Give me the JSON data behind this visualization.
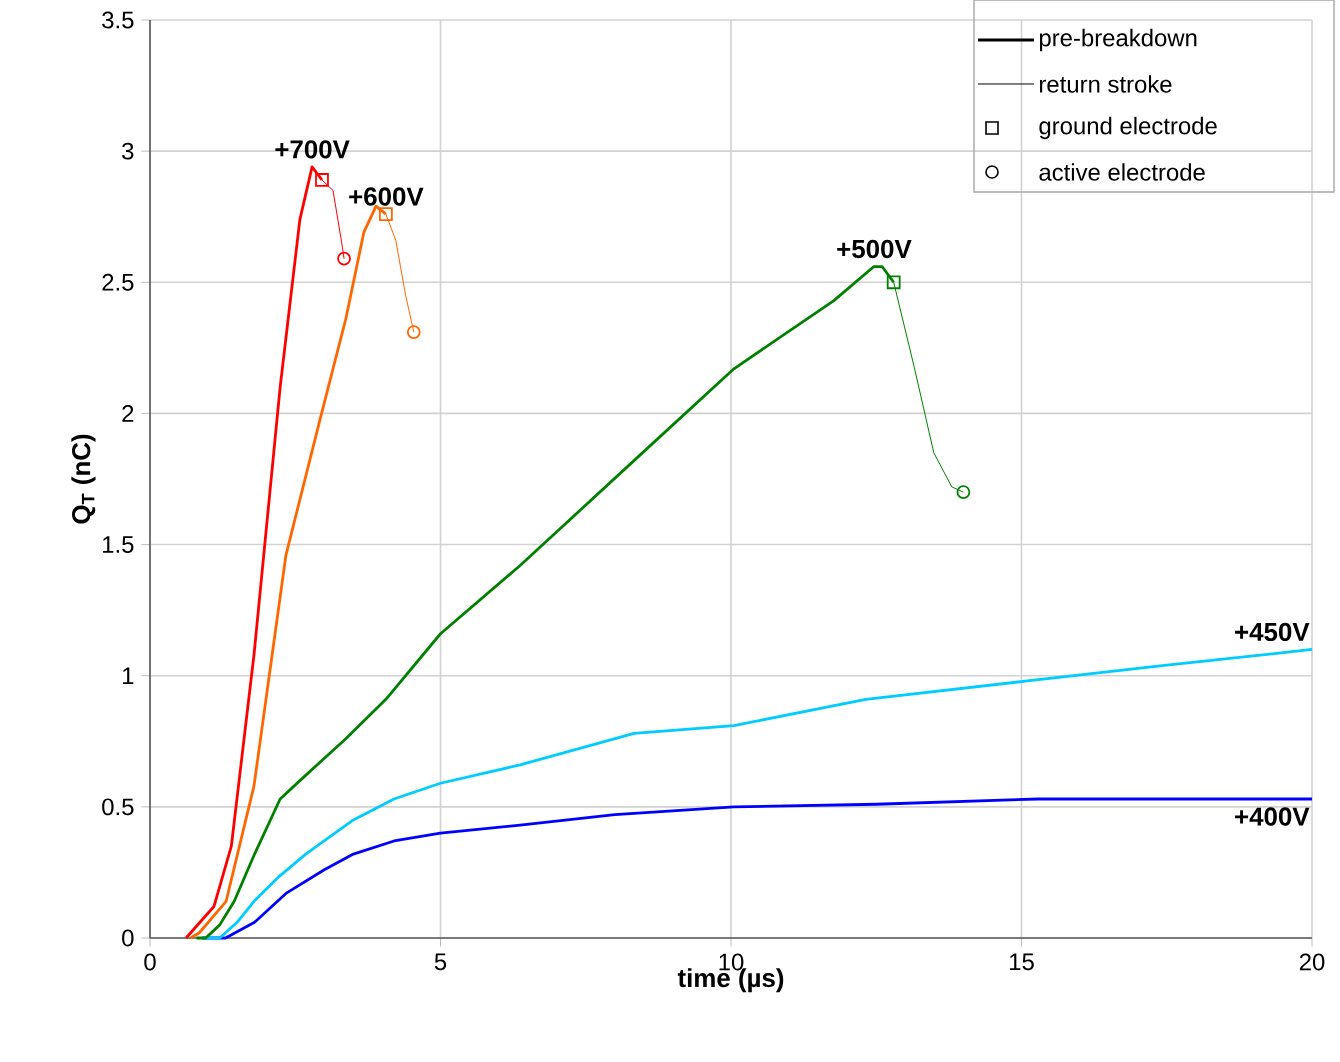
{
  "chart_data": {
    "type": "line",
    "xlabel": "time (µs)",
    "ylabel": "Q$_{T}$ (nC)",
    "xlim": [
      0,
      20
    ],
    "xticks": [
      0,
      5,
      10,
      15,
      20
    ],
    "ylim": [
      0,
      3.5
    ],
    "yticks": [
      0,
      0.5,
      1,
      1.5,
      2,
      2.5,
      3,
      3.5
    ],
    "grid": true,
    "series": [
      {
        "color": "#0000ff",
        "x": [
          0.9,
          1.3,
          1.8,
          2.34,
          3.0,
          3.5,
          4.2,
          5.0,
          6.37,
          8.0,
          10.05,
          12.5,
          15.3,
          20
        ],
        "values": [
          0,
          0,
          0.06,
          0.17,
          0.26,
          0.32,
          0.37,
          0.4,
          0.43,
          0.47,
          0.5,
          0.51,
          0.53,
          0.53
        ]
      },
      {
        "color": "#00ccff",
        "x": [
          0.9,
          1.2,
          1.5,
          1.79,
          2.2,
          2.68,
          3.5,
          4.2,
          5.0,
          6.37,
          8.33,
          10.05,
          12.32,
          15.1,
          17.5,
          20
        ],
        "values": [
          0,
          0,
          0.06,
          0.14,
          0.23,
          0.32,
          0.45,
          0.53,
          0.59,
          0.66,
          0.78,
          0.81,
          0.91,
          0.98,
          1.04,
          1.1
        ]
      },
      {
        "color": "#008000",
        "x": [
          0.8,
          0.96,
          1.2,
          1.45,
          1.8,
          2.24,
          2.58,
          3.37,
          4.06,
          5.0,
          6.37,
          8.33,
          10.05,
          11.77,
          12.46,
          12.6,
          12.8
        ],
        "values": [
          0,
          0,
          0.05,
          0.14,
          0.32,
          0.53,
          0.6,
          0.76,
          0.91,
          1.16,
          1.42,
          1.82,
          2.17,
          2.43,
          2.56,
          2.56,
          2.5
        ]
      },
      {
        "color": "#ff6600",
        "x": [
          0.7,
          0.85,
          1.31,
          1.79,
          2.34,
          2.93,
          3.37,
          3.68,
          3.89,
          4.06
        ],
        "values": [
          0,
          0.02,
          0.14,
          0.58,
          1.46,
          1.98,
          2.36,
          2.69,
          2.79,
          2.76
        ]
      },
      {
        "color": "#ff0000",
        "x": [
          0.62,
          1.1,
          1.4,
          1.79,
          2.24,
          2.58,
          2.79,
          2.96
        ],
        "values": [
          0,
          0.12,
          0.35,
          1.08,
          2.1,
          2.74,
          2.94,
          2.89
        ]
      },
      {
        "color": "#008000",
        "x": [
          12.8,
          13.15,
          13.49,
          13.8,
          14.0
        ],
        "values": [
          2.5,
          2.18,
          1.85,
          1.72,
          1.7
        ]
      },
      {
        "color": "#ff6600",
        "x": [
          4.06,
          4.23,
          4.4,
          4.54
        ],
        "values": [
          2.76,
          2.66,
          2.45,
          2.31
        ]
      },
      {
        "color": "#ff0000",
        "x": [
          2.96,
          3.15,
          3.3,
          3.34
        ],
        "values": [
          2.89,
          2.85,
          2.65,
          2.59
        ]
      },
      {
        "type": "scatter",
        "marker": "square",
        "x": [
          2.96,
          4.06,
          12.8
        ],
        "values": [
          2.89,
          2.76,
          2.5
        ],
        "colors": [
          "#ff0000",
          "#ff6600",
          "#008000"
        ]
      },
      {
        "type": "scatter",
        "marker": "circle",
        "x": [
          3.34,
          4.54,
          14.0
        ],
        "values": [
          2.59,
          2.31,
          1.7
        ],
        "colors": [
          "#ff0000",
          "#ff6600",
          "#008000"
        ]
      }
    ],
    "annotations": [
      "pre-breakdown",
      "return stroke",
      "ground electrode",
      "active electrode",
      {
        "text": "+700V",
        "x": 2.79,
        "y": 2.94
      },
      {
        "text": "+600V",
        "x": 4.06,
        "y": 2.76
      },
      {
        "text": "+500V",
        "x": 12.46,
        "y": 2.56
      },
      {
        "text": "+450V",
        "x": 20,
        "y": 1.1
      },
      {
        "text": "+400V",
        "x": 20,
        "y": 0.53
      }
    ]
  }
}
